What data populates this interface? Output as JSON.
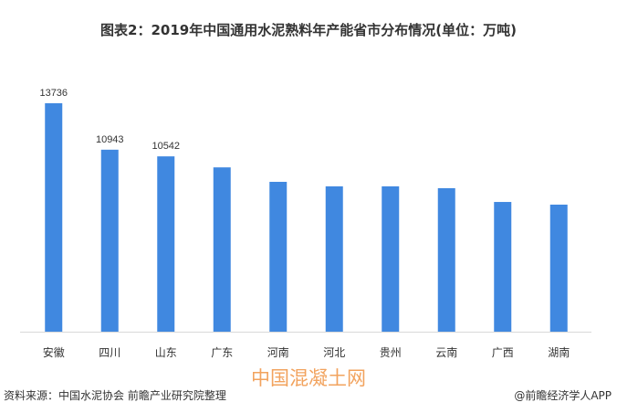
{
  "chart_data": {
    "type": "bar",
    "title": "图表2：2019年中国通用水泥熟料年产能省市分布情况(单位：万吨)",
    "categories": [
      "安徽",
      "四川",
      "山东",
      "广东",
      "河南",
      "河北",
      "贵州",
      "云南",
      "广西",
      "湖南"
    ],
    "values": [
      13736,
      10943,
      10542,
      9880,
      9010,
      8740,
      8740,
      8630,
      7800,
      7640
    ],
    "data_labels": [
      "13736",
      "10943",
      "10542",
      "",
      "",
      "",
      "",
      "",
      "",
      ""
    ],
    "xlabel": "",
    "ylabel": "",
    "ylim": [
      0,
      13736
    ],
    "grid": false,
    "bar_color": "#4088e0"
  },
  "watermark": "中国混凝土网",
  "source": "资料来源：中国水泥协会 前瞻产业研究院整理",
  "credit": "@前瞻经济学人APP"
}
